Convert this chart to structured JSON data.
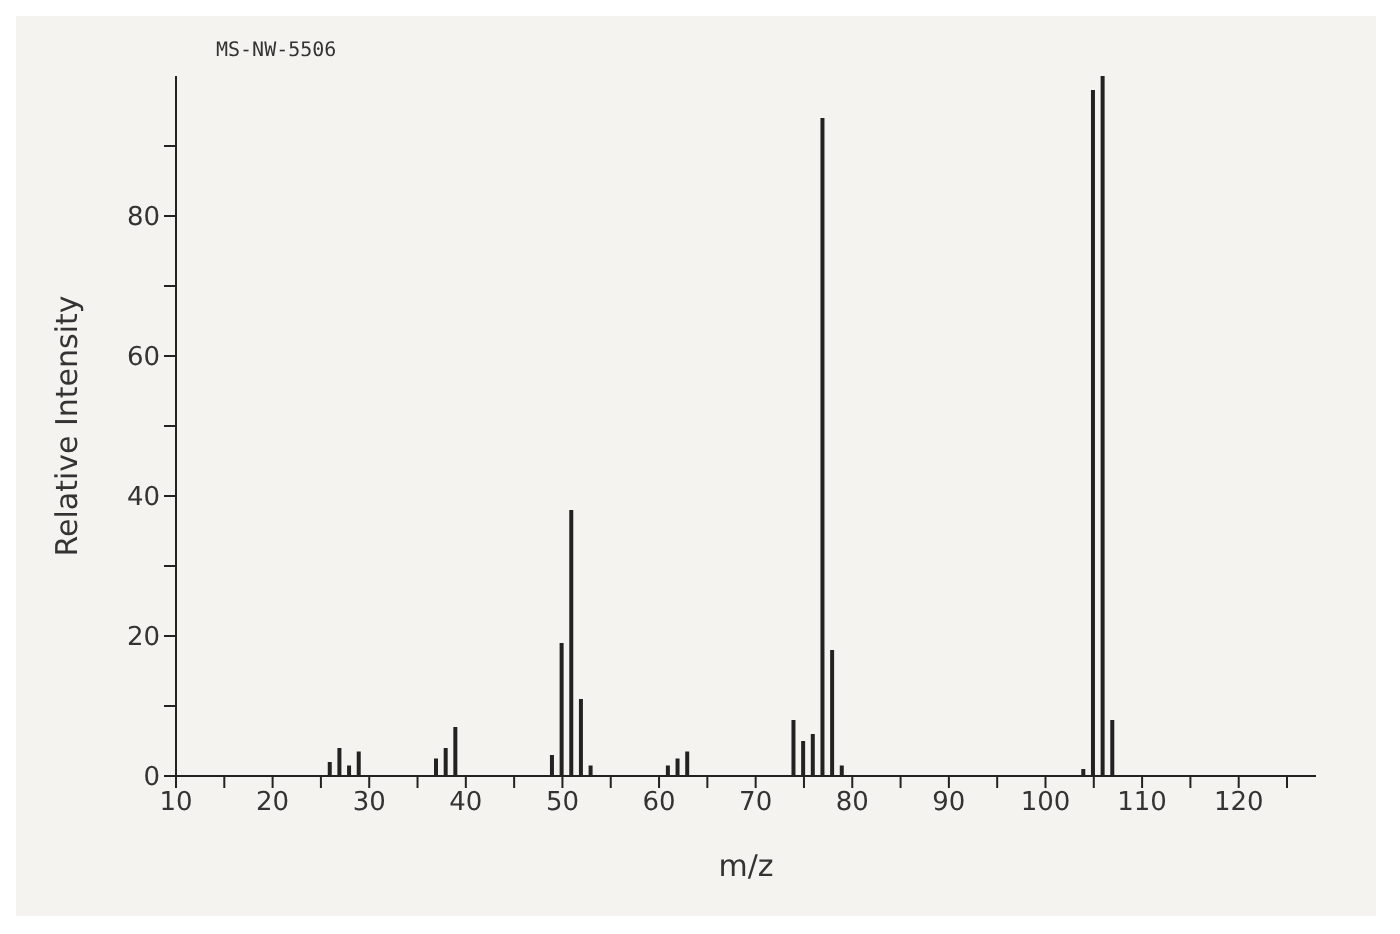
{
  "chart_data": {
    "type": "bar",
    "xlabel": "m/z",
    "ylabel": "Relative Intensity",
    "annotations": [
      "MS-NW-5506"
    ],
    "x": [
      26,
      27,
      28,
      29,
      37,
      38,
      39,
      49,
      50,
      51,
      52,
      53,
      61,
      62,
      63,
      74,
      75,
      76,
      77,
      78,
      79,
      104,
      105,
      106,
      107
    ],
    "values": [
      2,
      4,
      1.5,
      3.5,
      2.5,
      4,
      7,
      3,
      19,
      38,
      11,
      1.5,
      1.5,
      2.5,
      3.5,
      8,
      5,
      6,
      94,
      18,
      1.5,
      1,
      98,
      100,
      8
    ],
    "color": "#222222",
    "xlim": [
      10,
      128
    ],
    "xticks": [
      10,
      {
        "value": 15,
        "label": null
      },
      20,
      {
        "value": 25,
        "label": null
      },
      30,
      {
        "value": 35,
        "label": null
      },
      40,
      {
        "value": 45,
        "label": null
      },
      50,
      {
        "value": 55,
        "label": null
      },
      60,
      {
        "value": 65,
        "label": null
      },
      70,
      {
        "value": 75,
        "label": null
      },
      80,
      {
        "value": 85,
        "label": null
      },
      90,
      {
        "value": 95,
        "label": null
      },
      100,
      {
        "value": 105,
        "label": null
      },
      110,
      {
        "value": 115,
        "label": null
      },
      120,
      {
        "value": 125,
        "label": null
      }
    ],
    "ylim": [
      0,
      100
    ],
    "yticks": [
      0,
      {
        "value": 10,
        "label": null
      },
      20,
      {
        "value": 30,
        "label": null
      },
      40,
      {
        "value": 50,
        "label": null
      },
      60,
      {
        "value": 70,
        "label": null
      },
      80,
      {
        "value": 90,
        "label": null
      }
    ]
  }
}
